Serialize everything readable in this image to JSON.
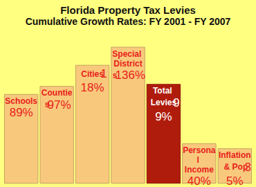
{
  "chart_data": {
    "type": "bar",
    "title": "Florida Property Tax Levies",
    "subtitle": "Cumulative Growth Rates: FY 2001 - FY 2007",
    "categories": [
      "Schools",
      "Counties",
      "Cities",
      "Special Districts",
      "Total Levies",
      "Personal Income",
      "Inflation & Pop"
    ],
    "values": [
      89,
      97,
      118,
      136,
      99,
      40,
      35
    ],
    "value_labels": [
      "89%",
      "97%",
      "118%",
      "136%",
      "99%",
      "40%",
      "35%"
    ],
    "colors": [
      "#f8c97c",
      "#f8c97c",
      "#f8c97c",
      "#f8c97c",
      "#b01c0c",
      "#f8c97c",
      "#f8c97c"
    ],
    "ylim": [
      0,
      155
    ],
    "grid": false,
    "data_labels": true,
    "tick_labels": false
  }
}
